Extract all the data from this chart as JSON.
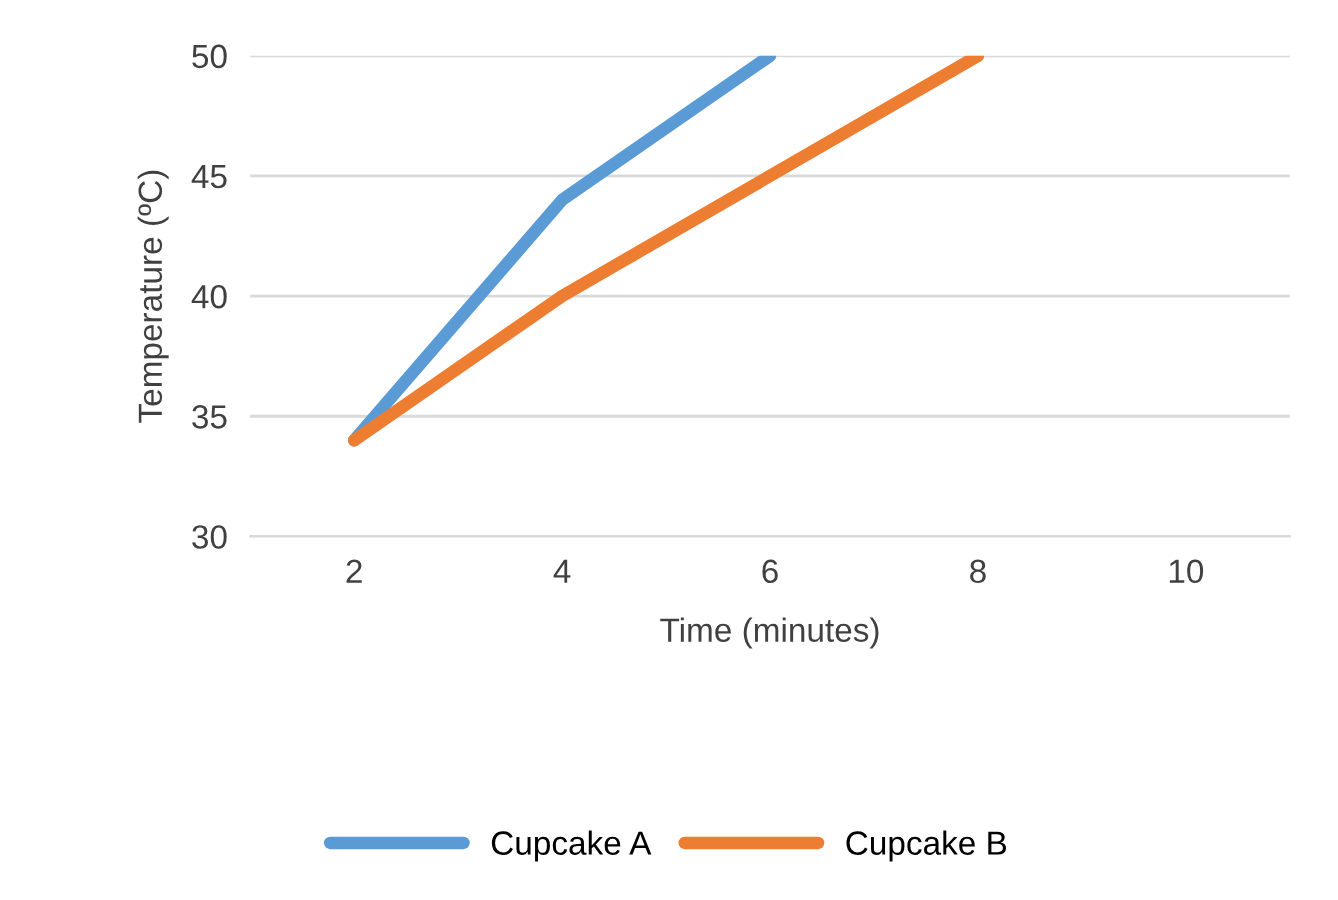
{
  "chart_data": {
    "type": "line",
    "xlabel": "Time (minutes)",
    "ylabel": "Temperature (ºC)",
    "categories": [
      "2",
      "4",
      "6",
      "8",
      "10"
    ],
    "series": [
      {
        "name": "Cupcake A",
        "color": "#5b9bd5",
        "values": [
          34,
          44,
          50,
          null,
          null
        ]
      },
      {
        "name": "Cupcake B",
        "color": "#ed7d31",
        "values": [
          34,
          40,
          45,
          50,
          null
        ]
      }
    ],
    "ylim": [
      30,
      50
    ],
    "yticks": [
      30,
      35,
      40,
      45,
      50
    ],
    "grid": "y",
    "legend": "bottom",
    "marker": "none",
    "line_style": "solid"
  }
}
